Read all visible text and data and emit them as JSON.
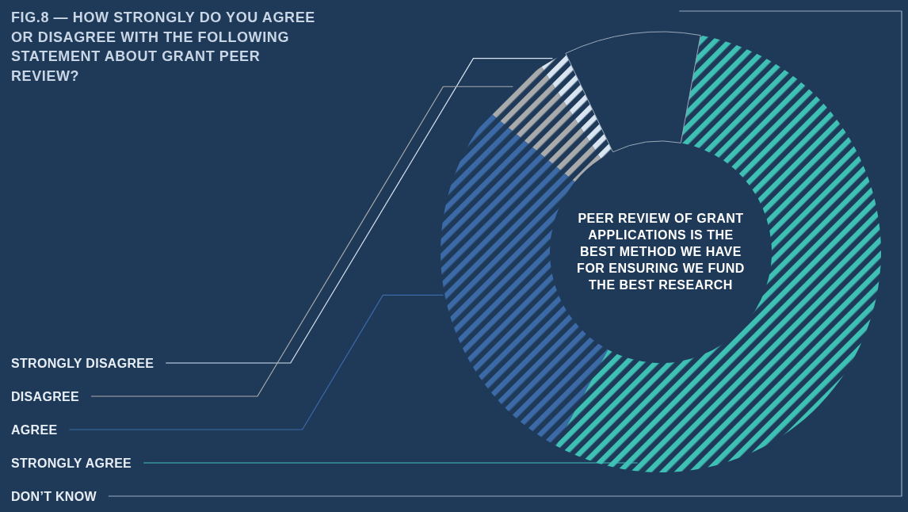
{
  "chart_data": {
    "type": "donut",
    "title": "FIG.8 — HOW STRONGLY DO YOU AGREE OR DISAGREE WITH THE FOLLOWING STATEMENT ABOUT GRANT PEER REVIEW?",
    "categories": [
      "STRONGLY DISAGREE",
      "DISAGREE",
      "AGREE",
      "STRONGLY AGREE",
      "DON’T KNOW"
    ],
    "values": [
      2,
      5,
      28,
      55,
      10
    ],
    "colors": [
      "#d8e4f0",
      "#a9aaab",
      "#3b6aa6",
      "#3ec0b5",
      "#1e3a58"
    ],
    "annotations": [
      "PEER REVIEW OF GRANT APPLICATIONS IS THE BEST METHOD WE HAVE FOR ENSURING WE FUND THE BEST RESEARCH"
    ]
  }
}
